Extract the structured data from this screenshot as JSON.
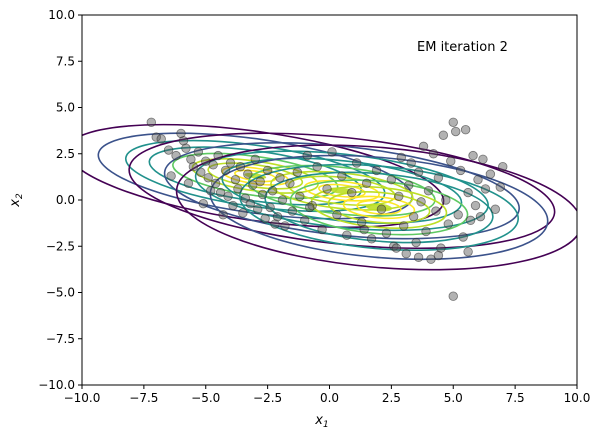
{
  "chart_data": {
    "type": "scatter",
    "title": "",
    "annotation": "EM iteration 2",
    "xlabel": "x",
    "xlabel_sub": "1",
    "ylabel": "x",
    "ylabel_sub": "2",
    "xlim": [
      -10,
      10
    ],
    "ylim": [
      -10,
      10
    ],
    "xticks": [
      -10,
      -7.5,
      -5,
      -2.5,
      0,
      2.5,
      5,
      7.5,
      10
    ],
    "xtick_labels": [
      "−10.0",
      "−7.5",
      "−5.0",
      "−2.5",
      "0.0",
      "2.5",
      "5.0",
      "7.5",
      "10.0"
    ],
    "yticks": [
      -10,
      -7.5,
      -5,
      -2.5,
      0,
      2.5,
      5,
      7.5,
      10
    ],
    "ytick_labels": [
      "−10.0",
      "−7.5",
      "−5.0",
      "−2.5",
      "0.0",
      "2.5",
      "5.0",
      "7.5",
      "10.0"
    ],
    "grid": false,
    "point_color": "#555555",
    "points": [
      [
        -7.2,
        4.2
      ],
      [
        -7.0,
        3.4
      ],
      [
        -6.8,
        3.3
      ],
      [
        -6.5,
        2.7
      ],
      [
        -6.2,
        2.4
      ],
      [
        -6.0,
        3.6
      ],
      [
        -5.9,
        3.2
      ],
      [
        -5.8,
        2.8
      ],
      [
        -5.6,
        2.2
      ],
      [
        -5.5,
        1.8
      ],
      [
        -5.3,
        2.6
      ],
      [
        -5.2,
        1.5
      ],
      [
        -5.0,
        2.1
      ],
      [
        -4.9,
        1.2
      ],
      [
        -4.7,
        1.9
      ],
      [
        -4.6,
        0.9
      ],
      [
        -4.5,
        2.4
      ],
      [
        -4.4,
        0.4
      ],
      [
        -4.2,
        1.6
      ],
      [
        -4.1,
        0.2
      ],
      [
        -4.0,
        2.0
      ],
      [
        -3.9,
        -0.3
      ],
      [
        -3.8,
        1.1
      ],
      [
        -3.7,
        0.6
      ],
      [
        -3.6,
        1.8
      ],
      [
        -3.5,
        -0.7
      ],
      [
        -3.4,
        0.1
      ],
      [
        -3.3,
        1.4
      ],
      [
        -3.2,
        -0.2
      ],
      [
        -3.1,
        0.8
      ],
      [
        -3.0,
        2.2
      ],
      [
        -2.9,
        -0.5
      ],
      [
        -2.8,
        1.0
      ],
      [
        -2.7,
        0.3
      ],
      [
        -2.6,
        -1.0
      ],
      [
        -2.5,
        1.6
      ],
      [
        -2.4,
        -0.4
      ],
      [
        -2.3,
        0.5
      ],
      [
        -2.1,
        -0.9
      ],
      [
        -2.0,
        1.2
      ],
      [
        -1.9,
        0.0
      ],
      [
        -1.8,
        -1.4
      ],
      [
        -1.6,
        0.9
      ],
      [
        -1.5,
        -0.6
      ],
      [
        -1.3,
        1.5
      ],
      [
        -1.2,
        0.2
      ],
      [
        -1.0,
        -1.1
      ],
      [
        -0.9,
        2.4
      ],
      [
        -0.7,
        -0.3
      ],
      [
        -0.5,
        1.8
      ],
      [
        -0.3,
        -1.6
      ],
      [
        -0.1,
        0.6
      ],
      [
        0.1,
        2.6
      ],
      [
        0.3,
        -0.8
      ],
      [
        0.5,
        1.3
      ],
      [
        0.7,
        -1.9
      ],
      [
        0.9,
        0.4
      ],
      [
        1.1,
        2.0
      ],
      [
        1.3,
        -1.2
      ],
      [
        1.5,
        0.9
      ],
      [
        1.7,
        -2.1
      ],
      [
        1.9,
        1.6
      ],
      [
        2.1,
        -0.5
      ],
      [
        2.3,
        -1.8
      ],
      [
        2.5,
        1.1
      ],
      [
        2.6,
        -2.5
      ],
      [
        2.8,
        0.2
      ],
      [
        2.9,
        2.3
      ],
      [
        3.0,
        -1.4
      ],
      [
        3.1,
        -2.9
      ],
      [
        3.2,
        0.8
      ],
      [
        3.3,
        2.0
      ],
      [
        3.4,
        -0.9
      ],
      [
        3.5,
        -2.3
      ],
      [
        3.6,
        1.5
      ],
      [
        3.7,
        -0.1
      ],
      [
        3.8,
        2.9
      ],
      [
        3.9,
        -1.7
      ],
      [
        4.0,
        0.5
      ],
      [
        4.1,
        -3.2
      ],
      [
        4.2,
        2.5
      ],
      [
        4.3,
        -0.6
      ],
      [
        4.4,
        1.2
      ],
      [
        4.5,
        -2.6
      ],
      [
        4.6,
        3.5
      ],
      [
        4.7,
        0.0
      ],
      [
        4.8,
        -1.3
      ],
      [
        4.9,
        2.1
      ],
      [
        5.0,
        4.2
      ],
      [
        5.0,
        -5.2
      ],
      [
        5.1,
        3.7
      ],
      [
        5.2,
        -0.8
      ],
      [
        5.3,
        1.6
      ],
      [
        5.4,
        -2.0
      ],
      [
        5.5,
        3.8
      ],
      [
        5.6,
        0.4
      ],
      [
        5.7,
        -1.1
      ],
      [
        5.8,
        2.4
      ],
      [
        5.9,
        -0.3
      ],
      [
        6.0,
        1.1
      ],
      [
        6.1,
        -0.9
      ],
      [
        6.3,
        0.6
      ],
      [
        6.5,
        1.4
      ],
      [
        6.7,
        -0.5
      ],
      [
        6.9,
        0.7
      ],
      [
        7.0,
        1.8
      ],
      [
        6.2,
        2.2
      ],
      [
        5.6,
        -2.8
      ],
      [
        4.4,
        -3.0
      ],
      [
        3.6,
        -3.1
      ],
      [
        2.7,
        -2.6
      ],
      [
        1.4,
        -1.6
      ],
      [
        -6.4,
        1.3
      ],
      [
        -5.7,
        0.9
      ],
      [
        -5.1,
        -0.2
      ],
      [
        -4.8,
        0.5
      ],
      [
        -4.3,
        -0.8
      ],
      [
        -2.2,
        -1.3
      ],
      [
        -0.8,
        -0.4
      ]
    ],
    "contour_colors": [
      "#440154",
      "#3b528b",
      "#21918c",
      "#5ec962",
      "#bddf26",
      "#fde725"
    ],
    "components": [
      {
        "mean": [
          -3.0,
          1.3
        ],
        "sx": 3.2,
        "sy": 1.0,
        "rot": -8,
        "weight": 1.0
      },
      {
        "mean": [
          0.5,
          0.5
        ],
        "sx": 3.6,
        "sy": 1.2,
        "rot": -6,
        "weight": 1.0
      },
      {
        "mean": [
          2.0,
          -0.4
        ],
        "sx": 3.8,
        "sy": 1.5,
        "rot": -5,
        "weight": 0.9
      }
    ]
  }
}
